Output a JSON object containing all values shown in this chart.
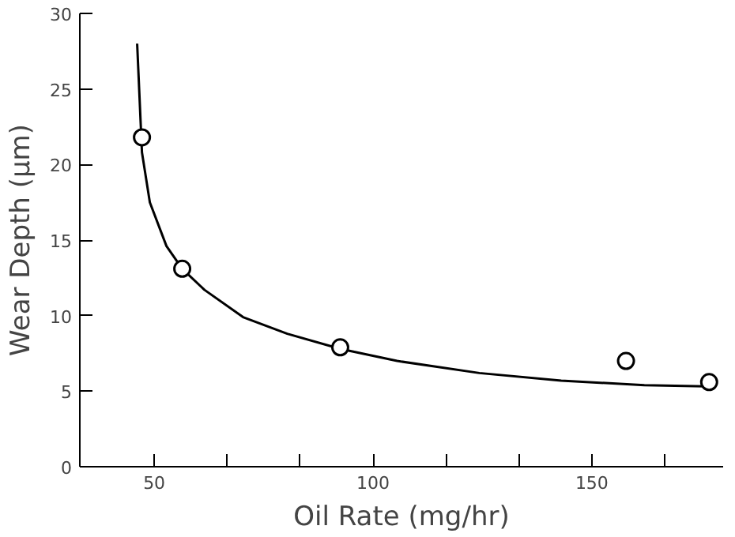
{
  "chart_data": {
    "type": "scatter",
    "xlabel": "Oil Rate (mg/hr)",
    "ylabel": "Wear Depth (μm)",
    "grid": false,
    "xlim": [
      33,
      180
    ],
    "ylim": [
      0,
      30
    ],
    "xticks": [
      50,
      {
        "value": 66.7,
        "label": null
      },
      {
        "value": 83.3,
        "label": null
      },
      100,
      {
        "value": 116.7,
        "label": null
      },
      {
        "value": 133.3,
        "label": null
      },
      150,
      {
        "value": 166.7,
        "label": null
      }
    ],
    "yticks": [
      0,
      5,
      10,
      15,
      20,
      25,
      30
    ],
    "series": [
      {
        "color": "#000000",
        "marker": "circle",
        "x": [
          47.2,
          56.4,
          92.5,
          157.8,
          176.8
        ],
        "values": [
          21.8,
          13.1,
          7.9,
          7.0,
          5.6
        ]
      },
      {
        "type": "line",
        "color": "#000000",
        "x": [
          46.1,
          47.2,
          49,
          52.8,
          56.4,
          61.5,
          70.3,
          80.4,
          92.5,
          105.5,
          124.3,
          143,
          162,
          178.3
        ],
        "values": [
          28.0,
          20.8,
          17.5,
          14.6,
          13.1,
          11.7,
          9.9,
          8.8,
          7.8,
          7.0,
          6.2,
          5.7,
          5.4,
          5.3
        ]
      }
    ]
  }
}
